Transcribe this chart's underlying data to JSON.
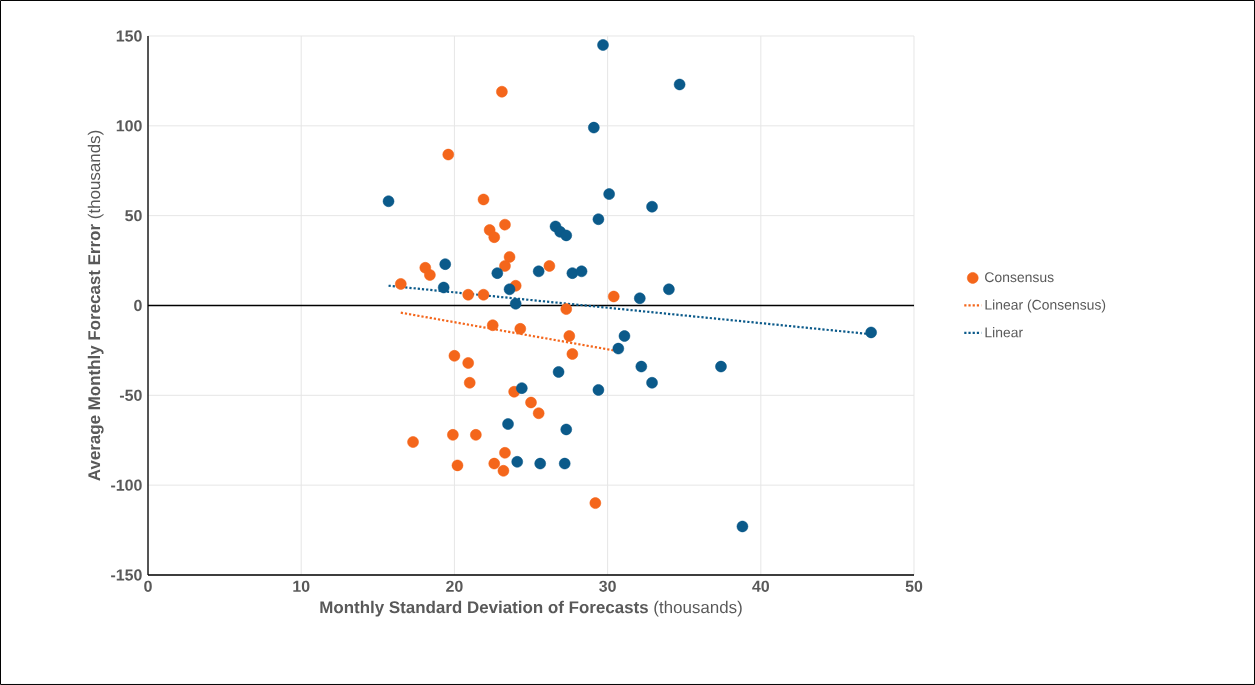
{
  "chart_data": {
    "type": "scatter",
    "xlabel": "**Monthly Standard Deviation of Forecasts** (thousands)",
    "ylabel": "**Average Monthly Forecast Error** (thousands)",
    "xlim": [
      0,
      50
    ],
    "ylim": [
      -150,
      150
    ],
    "xticks": [
      0,
      10,
      20,
      30,
      40,
      50
    ],
    "yticks": [
      -150,
      -100,
      -50,
      0,
      50,
      100,
      150
    ],
    "grid": true,
    "legend": "right",
    "ref_lines": [
      {
        "axis": "y",
        "value": 0,
        "color": "#000000"
      }
    ],
    "series": [
      {
        "name": "Consensus",
        "color": "#f4661b",
        "marker": "circle",
        "x": [
          23.1,
          19.6,
          21.9,
          22.3,
          23.3,
          22.6,
          23.6,
          23.3,
          26.2,
          18.1,
          18.4,
          16.5,
          24.0,
          20.9,
          21.9,
          30.4,
          27.3,
          22.5,
          24.3,
          27.5,
          27.7,
          20.0,
          20.9,
          21.0,
          23.9,
          25.0,
          25.5,
          17.3,
          19.9,
          21.4,
          23.3,
          20.2,
          22.6,
          23.2,
          29.2
        ],
        "values": [
          119,
          84,
          59,
          42,
          45,
          38,
          27,
          22,
          22,
          21,
          17,
          12,
          11,
          6,
          6,
          5,
          -2,
          -11,
          -13,
          -17,
          -27,
          -28,
          -32,
          -43,
          -48,
          -54,
          -60,
          -76,
          -72,
          -72,
          -82,
          -89,
          -88,
          -92,
          -110
        ]
      },
      {
        "color": "#0b5a8a",
        "marker": "circle",
        "x": [
          29.7,
          34.7,
          29.1,
          30.1,
          32.9,
          15.7,
          29.4,
          26.6,
          26.9,
          27.3,
          19.4,
          22.8,
          25.5,
          27.7,
          28.3,
          19.3,
          23.6,
          34.0,
          32.1,
          24.0,
          47.2,
          31.1,
          30.7,
          32.2,
          26.8,
          37.4,
          32.9,
          24.4,
          29.4,
          23.5,
          27.3,
          24.1,
          25.6,
          27.2,
          38.8
        ],
        "values": [
          145,
          123,
          99,
          62,
          55,
          58,
          48,
          44,
          41,
          39,
          23,
          18,
          19,
          18,
          19,
          10,
          9,
          9,
          4,
          1,
          -15,
          -17,
          -24,
          -34,
          -37,
          -34,
          -43,
          -46,
          -47,
          -66,
          -69,
          -87,
          -88,
          -88,
          -123
        ]
      },
      {
        "name": "Linear (Consensus)",
        "type": "line",
        "line_style": "dotted",
        "marker": "none",
        "color": "#f4661b",
        "x": [
          16.5,
          30.4
        ],
        "values": [
          -4,
          -25
        ]
      },
      {
        "name": "Linear",
        "type": "line",
        "line_style": "dotted",
        "marker": "none",
        "color": "#0b5a8a",
        "x": [
          15.7,
          47.2
        ],
        "values": [
          11,
          -16
        ]
      }
    ]
  }
}
